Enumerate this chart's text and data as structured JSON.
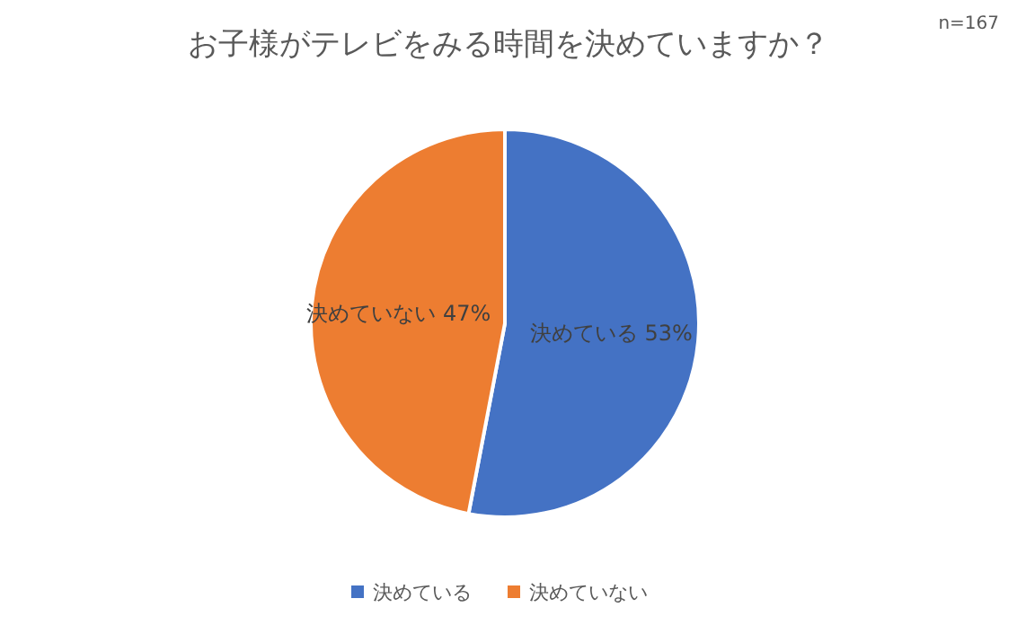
{
  "chart_data": {
    "type": "pie",
    "title": "お子様がテレビをみる時間を決めていますか？",
    "annotations": [
      "n=167"
    ],
    "categories": [
      "決めている",
      "決めていない"
    ],
    "values": [
      53,
      47
    ],
    "value_labels": [
      "53%",
      "47%"
    ],
    "colors": [
      "#4472c4",
      "#ed7d31"
    ],
    "legend": "bottom"
  }
}
